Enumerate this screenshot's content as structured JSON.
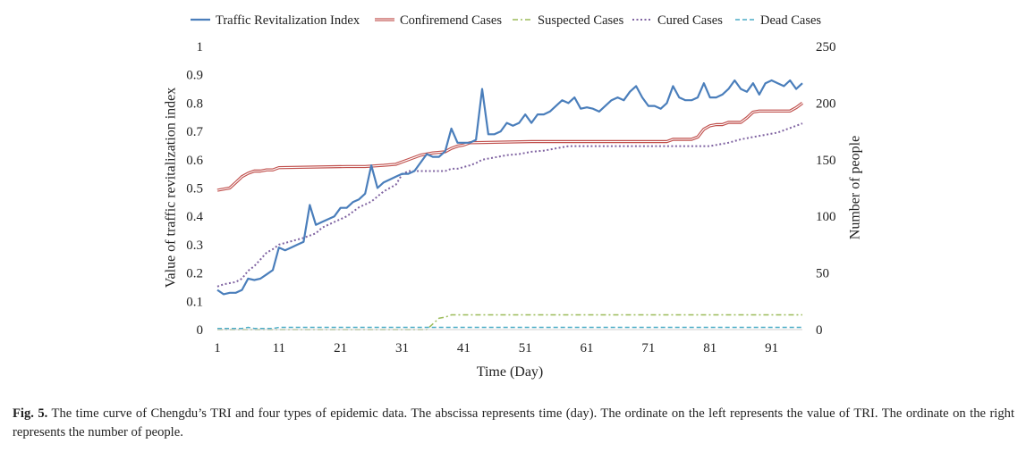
{
  "chart_data": {
    "type": "line",
    "title": "",
    "xlabel": "Time (Day)",
    "ylabel_left": "Value of traffic revitalization index",
    "ylabel_right": "Number of people",
    "x_ticks": [
      "1",
      "11",
      "21",
      "31",
      "41",
      "51",
      "61",
      "71",
      "81",
      "91"
    ],
    "y_left_ticks": [
      "0",
      "0.1",
      "0.2",
      "0.3",
      "0.4",
      "0.5",
      "0.6",
      "0.7",
      "0.8",
      "0.9",
      "1"
    ],
    "y_right_ticks": [
      "0",
      "50",
      "100",
      "150",
      "200",
      "250"
    ],
    "xlim": [
      1,
      96
    ],
    "ylim_left": [
      0,
      1
    ],
    "ylim_right": [
      0,
      250
    ],
    "legend_position": "top",
    "grid": false,
    "series": [
      {
        "name": "Traffic Revitalization Index",
        "axis": "left",
        "color": "#4a7ebb",
        "style": "solid",
        "x": [
          1,
          2,
          3,
          4,
          5,
          6,
          7,
          8,
          9,
          10,
          11,
          12,
          13,
          14,
          15,
          16,
          17,
          18,
          19,
          20,
          21,
          22,
          23,
          24,
          25,
          26,
          27,
          28,
          29,
          30,
          31,
          32,
          33,
          34,
          35,
          36,
          37,
          38,
          39,
          40,
          41,
          42,
          43,
          44,
          45,
          46,
          47,
          48,
          49,
          50,
          51,
          52,
          53,
          54,
          55,
          56,
          57,
          58,
          59,
          60,
          61,
          62,
          63,
          64,
          65,
          66,
          67,
          68,
          69,
          70,
          71,
          72,
          73,
          74,
          75,
          76,
          77,
          78,
          79,
          80,
          81,
          82,
          83,
          84,
          85,
          86,
          87,
          88,
          89,
          90,
          91,
          92,
          93,
          94,
          95,
          96
        ],
        "values": [
          0.14,
          0.125,
          0.13,
          0.13,
          0.14,
          0.18,
          0.175,
          0.18,
          0.195,
          0.21,
          0.29,
          0.28,
          0.29,
          0.3,
          0.31,
          0.44,
          0.37,
          0.38,
          0.39,
          0.4,
          0.43,
          0.43,
          0.45,
          0.46,
          0.48,
          0.58,
          0.5,
          0.52,
          0.53,
          0.54,
          0.55,
          0.55,
          0.56,
          0.59,
          0.62,
          0.61,
          0.61,
          0.63,
          0.71,
          0.66,
          0.66,
          0.66,
          0.67,
          0.85,
          0.69,
          0.69,
          0.7,
          0.73,
          0.72,
          0.73,
          0.76,
          0.73,
          0.76,
          0.76,
          0.77,
          0.79,
          0.81,
          0.8,
          0.82,
          0.78,
          0.785,
          0.78,
          0.77,
          0.79,
          0.81,
          0.82,
          0.81,
          0.84,
          0.86,
          0.82,
          0.79,
          0.79,
          0.78,
          0.8,
          0.86,
          0.82,
          0.81,
          0.81,
          0.82,
          0.87,
          0.82,
          0.82,
          0.83,
          0.85,
          0.88,
          0.85,
          0.84,
          0.87,
          0.83,
          0.87,
          0.88,
          0.87,
          0.86,
          0.88,
          0.85,
          0.87
        ]
      },
      {
        "name": "Confiremend Cases",
        "axis": "right",
        "color": "#c0504d",
        "style": "double",
        "x": [
          1,
          3,
          4,
          5,
          6,
          7,
          8,
          9,
          10,
          11,
          22,
          25,
          28,
          30,
          31,
          32,
          34,
          36,
          38,
          39,
          40,
          41,
          42,
          52,
          74,
          75,
          78,
          79,
          80,
          81,
          82,
          83,
          84,
          86,
          87,
          88,
          89,
          93,
          94,
          95,
          96
        ],
        "values": [
          123,
          125,
          130,
          135,
          138,
          140,
          140,
          141,
          141,
          143,
          144,
          144,
          145,
          146,
          148,
          150,
          154,
          156,
          157,
          160,
          162,
          163,
          165,
          166,
          166,
          168,
          168,
          170,
          177,
          180,
          181,
          181,
          183,
          183,
          187,
          192,
          193,
          193,
          193,
          196,
          200
        ]
      },
      {
        "name": "Suspected Cases",
        "axis": "right",
        "color": "#9bbb59",
        "style": "dashdot",
        "x": [
          1,
          35,
          36,
          37,
          38,
          39,
          96
        ],
        "values": [
          0,
          0,
          5,
          10,
          11,
          13,
          13
        ]
      },
      {
        "name": "Cured Cases",
        "axis": "right",
        "color": "#8064a2",
        "style": "dotted",
        "x": [
          1,
          2,
          4,
          5,
          6,
          7,
          8,
          9,
          10,
          11,
          13,
          15,
          17,
          18,
          20,
          22,
          24,
          26,
          28,
          30,
          31,
          32,
          33,
          34,
          35,
          36,
          37,
          38,
          39,
          40,
          42,
          43,
          44,
          46,
          48,
          50,
          52,
          54,
          56,
          58,
          81,
          82,
          84,
          86,
          88,
          90,
          92,
          94,
          96
        ],
        "values": [
          38,
          40,
          42,
          45,
          52,
          56,
          62,
          68,
          71,
          75,
          78,
          81,
          85,
          90,
          95,
          100,
          108,
          113,
          122,
          128,
          137,
          140,
          140,
          140,
          140,
          140,
          140,
          140,
          142,
          142,
          145,
          147,
          150,
          152,
          154,
          155,
          157,
          158,
          160,
          162,
          162,
          163,
          165,
          168,
          170,
          172,
          174,
          178,
          182
        ]
      },
      {
        "name": "Dead Cases",
        "axis": "right",
        "color": "#4bacc6",
        "style": "dashed",
        "x": [
          1,
          5,
          6,
          7,
          8,
          9,
          10,
          11,
          96
        ],
        "values": [
          1,
          1,
          2,
          1,
          1,
          1,
          1,
          2,
          2
        ]
      }
    ]
  },
  "caption": {
    "label": "Fig. 5.",
    "text": "The time curve of Chengdu’s TRI and four types of epidemic data. The abscissa represents time (day). The ordinate on the left represents the value of TRI. The ordinate on the right represents the number of people."
  }
}
